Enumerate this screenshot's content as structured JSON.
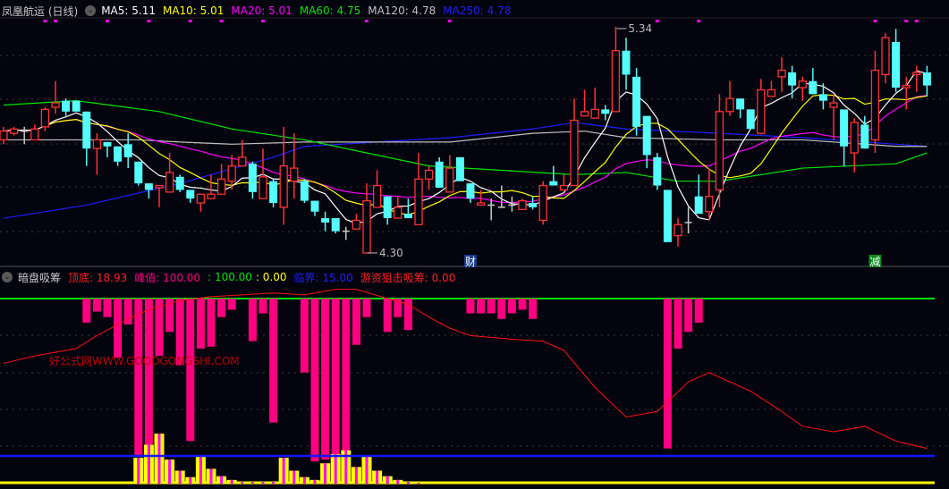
{
  "header": {
    "title": "凤凰航运 (日线)",
    "dropdown_icon": "chevron-down-circle-icon",
    "ma": [
      {
        "label": "MA5: 5.11",
        "color": "#ffffff"
      },
      {
        "label": "MA10: 5.01",
        "color": "#ffff00"
      },
      {
        "label": "MA20: 5.01",
        "color": "#ff00ff"
      },
      {
        "label": "MA60: 4.75",
        "color": "#00e600"
      },
      {
        "label": "MA120: 4.78",
        "color": "#c0c0c0"
      },
      {
        "label": "MA250: 4.78",
        "color": "#1e1eff"
      }
    ]
  },
  "indicator_header": {
    "name": "暗盘吸筹",
    "items": [
      {
        "label": "顶底: 18.93",
        "color": "#ff2020"
      },
      {
        "label": "峰值: 100.00",
        "color": "#ff0080"
      },
      {
        "label": ": 100.00",
        "color": "#00e600"
      },
      {
        "label": ": 0.00",
        "color": "#ffff00"
      },
      {
        "label": "临界: 15.00",
        "color": "#1e1eff"
      },
      {
        "label": "游资狙击吸筹: 0.00",
        "color": "#ff2020"
      }
    ]
  },
  "watermark": "好公式网WWW.GOODGONGSHI.COM",
  "chart_data": [
    {
      "type": "candlestick",
      "title": "凤凰航运 (日线)",
      "colors": {
        "up": "#ff3232",
        "down": "#54fcfc"
      },
      "candles_ohlc": [
        [
          4.82,
          4.88,
          4.8,
          4.86
        ],
        [
          4.85,
          4.88,
          4.84,
          4.87
        ],
        [
          4.86,
          4.88,
          4.8,
          4.86
        ],
        [
          4.82,
          4.89,
          4.82,
          4.87
        ],
        [
          4.88,
          4.97,
          4.86,
          4.96
        ],
        [
          4.97,
          5.09,
          4.94,
          4.99
        ],
        [
          5.0,
          5.01,
          4.93,
          4.95
        ],
        [
          5.0,
          5.0,
          4.95,
          4.95
        ],
        [
          4.95,
          4.95,
          4.7,
          4.78
        ],
        [
          4.78,
          4.85,
          4.66,
          4.82
        ],
        [
          4.81,
          4.81,
          4.74,
          4.79
        ],
        [
          4.79,
          4.79,
          4.7,
          4.72
        ],
        [
          4.8,
          4.85,
          4.69,
          4.74
        ],
        [
          4.72,
          4.72,
          4.61,
          4.62
        ],
        [
          4.62,
          4.62,
          4.55,
          4.59
        ],
        [
          4.6,
          4.61,
          4.51,
          4.61
        ],
        [
          4.58,
          4.76,
          4.58,
          4.67
        ],
        [
          4.65,
          4.66,
          4.58,
          4.59
        ],
        [
          4.59,
          4.59,
          4.53,
          4.55
        ],
        [
          4.53,
          4.57,
          4.49,
          4.57
        ],
        [
          4.55,
          4.66,
          4.55,
          4.57
        ],
        [
          4.57,
          4.71,
          4.57,
          4.64
        ],
        [
          4.63,
          4.75,
          4.59,
          4.7
        ],
        [
          4.7,
          4.82,
          4.7,
          4.74
        ],
        [
          4.71,
          4.72,
          4.55,
          4.58
        ],
        [
          4.55,
          4.78,
          4.55,
          4.65
        ],
        [
          4.63,
          4.64,
          4.51,
          4.53
        ],
        [
          4.51,
          4.88,
          4.43,
          4.7
        ],
        [
          4.63,
          4.85,
          4.55,
          4.69
        ],
        [
          4.63,
          4.64,
          4.53,
          4.54
        ],
        [
          4.54,
          4.54,
          4.47,
          4.49
        ],
        [
          4.46,
          4.49,
          4.4,
          4.44
        ],
        [
          4.46,
          4.46,
          4.39,
          4.4
        ],
        [
          4.4,
          4.42,
          4.36,
          4.4
        ],
        [
          4.41,
          4.48,
          4.41,
          4.45
        ],
        [
          4.3,
          4.62,
          4.3,
          4.54
        ],
        [
          4.51,
          4.68,
          4.51,
          4.61
        ],
        [
          4.56,
          4.56,
          4.43,
          4.46
        ],
        [
          4.46,
          4.56,
          4.46,
          4.51
        ],
        [
          4.48,
          4.55,
          4.46,
          4.46
        ],
        [
          4.43,
          4.76,
          4.43,
          4.64
        ],
        [
          4.64,
          4.7,
          4.59,
          4.68
        ],
        [
          4.72,
          4.74,
          4.6,
          4.6
        ],
        [
          4.58,
          4.75,
          4.58,
          4.69
        ],
        [
          4.74,
          4.74,
          4.63,
          4.63
        ],
        [
          4.62,
          4.62,
          4.53,
          4.55
        ],
        [
          4.52,
          4.59,
          4.52,
          4.53
        ],
        [
          4.52,
          4.55,
          4.45,
          4.52
        ],
        [
          4.51,
          4.61,
          4.51,
          4.51
        ],
        [
          4.52,
          4.56,
          4.49,
          4.52
        ],
        [
          4.5,
          4.55,
          4.5,
          4.54
        ],
        [
          4.53,
          4.56,
          4.5,
          4.51
        ],
        [
          4.45,
          4.63,
          4.43,
          4.61
        ],
        [
          4.63,
          4.7,
          4.61,
          4.61
        ],
        [
          4.59,
          4.66,
          4.59,
          4.61
        ],
        [
          4.61,
          5.01,
          4.61,
          4.91
        ],
        [
          4.93,
          5.05,
          4.93,
          4.95
        ],
        [
          4.92,
          5.06,
          4.92,
          4.96
        ],
        [
          4.96,
          4.98,
          4.91,
          4.94
        ],
        [
          4.95,
          5.34,
          4.95,
          5.23
        ],
        [
          5.23,
          5.29,
          5.05,
          5.12
        ],
        [
          5.11,
          5.15,
          4.84,
          4.88
        ],
        [
          4.93,
          4.93,
          4.69,
          4.75
        ],
        [
          4.74,
          4.76,
          4.59,
          4.61
        ],
        [
          4.59,
          4.59,
          4.35,
          4.35
        ],
        [
          4.38,
          4.46,
          4.33,
          4.43
        ],
        [
          4.44,
          4.51,
          4.39,
          4.44
        ],
        [
          4.56,
          4.66,
          4.48,
          4.48
        ],
        [
          4.49,
          4.69,
          4.45,
          4.56
        ],
        [
          4.59,
          5.03,
          4.51,
          4.95
        ],
        [
          4.95,
          5.09,
          4.93,
          5.01
        ],
        [
          5.01,
          5.01,
          4.92,
          4.96
        ],
        [
          4.96,
          4.96,
          4.87,
          4.87
        ],
        [
          4.85,
          5.1,
          4.85,
          5.05
        ],
        [
          5.02,
          5.09,
          5.02,
          5.05
        ],
        [
          5.11,
          5.2,
          5.04,
          5.14
        ],
        [
          5.13,
          5.16,
          5.01,
          5.07
        ],
        [
          5.06,
          5.11,
          5.0,
          5.09
        ],
        [
          5.09,
          5.15,
          5.03,
          5.03
        ],
        [
          5.03,
          5.08,
          4.96,
          5.0
        ],
        [
          4.97,
          5.03,
          4.82,
          4.99
        ],
        [
          4.96,
          4.96,
          4.7,
          4.79
        ],
        [
          4.76,
          4.92,
          4.67,
          4.9
        ],
        [
          4.89,
          4.93,
          4.78,
          4.78
        ],
        [
          4.82,
          5.23,
          4.76,
          5.14
        ],
        [
          5.12,
          5.31,
          5.08,
          5.29
        ],
        [
          5.27,
          5.33,
          5.04,
          5.06
        ],
        [
          5.06,
          5.11,
          4.96,
          5.07
        ],
        [
          5.12,
          5.16,
          5.04,
          5.13
        ],
        [
          5.13,
          5.16,
          5.02,
          5.07
        ]
      ],
      "moving_averages": {
        "MA60": [
          [
            0,
            4.98
          ],
          [
            7,
            5.0
          ],
          [
            15,
            4.95
          ],
          [
            22,
            4.87
          ],
          [
            29,
            4.82
          ],
          [
            36,
            4.75
          ],
          [
            41,
            4.7
          ],
          [
            48,
            4.68
          ],
          [
            55,
            4.66
          ],
          [
            60,
            4.67
          ],
          [
            65,
            4.63
          ],
          [
            69,
            4.63
          ],
          [
            77,
            4.69
          ],
          [
            86,
            4.71
          ],
          [
            89,
            4.76
          ]
        ],
        "MA120": [
          [
            0,
            4.82
          ],
          [
            13,
            4.82
          ],
          [
            17,
            4.81
          ],
          [
            22,
            4.8
          ],
          [
            29,
            4.81
          ],
          [
            36,
            4.81
          ],
          [
            43,
            4.81
          ],
          [
            51,
            4.85
          ],
          [
            56,
            4.86
          ],
          [
            60,
            4.83
          ],
          [
            69,
            4.82
          ],
          [
            77,
            4.82
          ],
          [
            86,
            4.79
          ],
          [
            89,
            4.79
          ]
        ],
        "MA250": [
          [
            0,
            4.46
          ],
          [
            8,
            4.52
          ],
          [
            17,
            4.62
          ],
          [
            26,
            4.74
          ],
          [
            29,
            4.79
          ],
          [
            36,
            4.81
          ],
          [
            43,
            4.83
          ],
          [
            51,
            4.87
          ],
          [
            55,
            4.9
          ],
          [
            60,
            4.87
          ],
          [
            69,
            4.85
          ],
          [
            77,
            4.83
          ],
          [
            86,
            4.8
          ],
          [
            89,
            4.79
          ]
        ]
      },
      "annotations": [
        {
          "candle": 59,
          "text": "5.34",
          "kind": "high"
        },
        {
          "candle": 35,
          "text": "4.30",
          "kind": "low"
        }
      ],
      "event_markers": [
        {
          "candle": 45,
          "text": "财",
          "color": "#1a3a8a"
        },
        {
          "candle": 84,
          "text": "减",
          "color": "#0a8a1a"
        }
      ],
      "signal_dots": [
        4,
        5,
        10,
        14,
        18,
        21,
        25,
        35,
        43,
        63,
        67,
        84,
        87,
        88
      ],
      "price_range": [
        4.3,
        5.34
      ]
    },
    {
      "type": "indicator",
      "title": "暗盘吸筹",
      "ylim": [
        0,
        100
      ],
      "levels": {
        "peak": 100,
        "critical": 15,
        "base": 0
      },
      "top_bottom_curve": [
        [
          0,
          65
        ],
        [
          3,
          69
        ],
        [
          7,
          73
        ],
        [
          9,
          80
        ],
        [
          12,
          89
        ],
        [
          14,
          94
        ],
        [
          17,
          99
        ],
        [
          20,
          101
        ],
        [
          23,
          102
        ],
        [
          26,
          103
        ],
        [
          29,
          102
        ],
        [
          32,
          105
        ],
        [
          34,
          105
        ],
        [
          37,
          100
        ],
        [
          39,
          97
        ],
        [
          41,
          90
        ],
        [
          43,
          84
        ],
        [
          45,
          80
        ],
        [
          49,
          78
        ],
        [
          52,
          77
        ],
        [
          54,
          72
        ],
        [
          57,
          52
        ],
        [
          60,
          36
        ],
        [
          63,
          39
        ],
        [
          66,
          55
        ],
        [
          68,
          60
        ],
        [
          72,
          50
        ],
        [
          75,
          39
        ],
        [
          77,
          31
        ],
        [
          80,
          28
        ],
        [
          83,
          31
        ],
        [
          86,
          23
        ],
        [
          89,
          19
        ]
      ],
      "accumulation_bars": [
        [
          8,
          87
        ],
        [
          9,
          93
        ],
        [
          10,
          90
        ],
        [
          11,
          68
        ],
        [
          12,
          86
        ],
        [
          13,
          15
        ],
        [
          14,
          15
        ],
        [
          15,
          69
        ],
        [
          16,
          82
        ],
        [
          17,
          64
        ],
        [
          18,
          23
        ],
        [
          19,
          73
        ],
        [
          20,
          74
        ],
        [
          21,
          90
        ],
        [
          22,
          94
        ],
        [
          24,
          77
        ],
        [
          25,
          92
        ],
        [
          26,
          33
        ],
        [
          29,
          60
        ],
        [
          30,
          12
        ],
        [
          31,
          13
        ],
        [
          32,
          15
        ],
        [
          33,
          15
        ],
        [
          34,
          75
        ],
        [
          35,
          90
        ],
        [
          37,
          82
        ],
        [
          38,
          90
        ],
        [
          39,
          83
        ],
        [
          45,
          92
        ],
        [
          46,
          92
        ],
        [
          47,
          92
        ],
        [
          48,
          89
        ],
        [
          49,
          92
        ],
        [
          50,
          94
        ],
        [
          51,
          89
        ],
        [
          64,
          19
        ],
        [
          65,
          73
        ],
        [
          66,
          82
        ],
        [
          67,
          87
        ]
      ],
      "hot_money_bars": [
        [
          13,
          14
        ],
        [
          14,
          21
        ],
        [
          15,
          27
        ],
        [
          16,
          13
        ],
        [
          17,
          7
        ],
        [
          18,
          3.5
        ],
        [
          19,
          15
        ],
        [
          20,
          8
        ],
        [
          21,
          4
        ],
        [
          22,
          2
        ],
        [
          23,
          1
        ],
        [
          24,
          1
        ],
        [
          25,
          1
        ],
        [
          26,
          1
        ],
        [
          27,
          14
        ],
        [
          28,
          7
        ],
        [
          29,
          3.5
        ],
        [
          30,
          2
        ],
        [
          31,
          11
        ],
        [
          32,
          16
        ],
        [
          33,
          18
        ],
        [
          34,
          9
        ],
        [
          35,
          14.5
        ],
        [
          36,
          7
        ],
        [
          37,
          4
        ],
        [
          38,
          2
        ],
        [
          39,
          1
        ],
        [
          40,
          0.5
        ]
      ],
      "colors": {
        "curve": "#ff1010",
        "accumulation": "#ff0080",
        "hot_money": "#ffff00",
        "peak_line": "#00e600",
        "critical_line": "#1414ff"
      }
    }
  ]
}
